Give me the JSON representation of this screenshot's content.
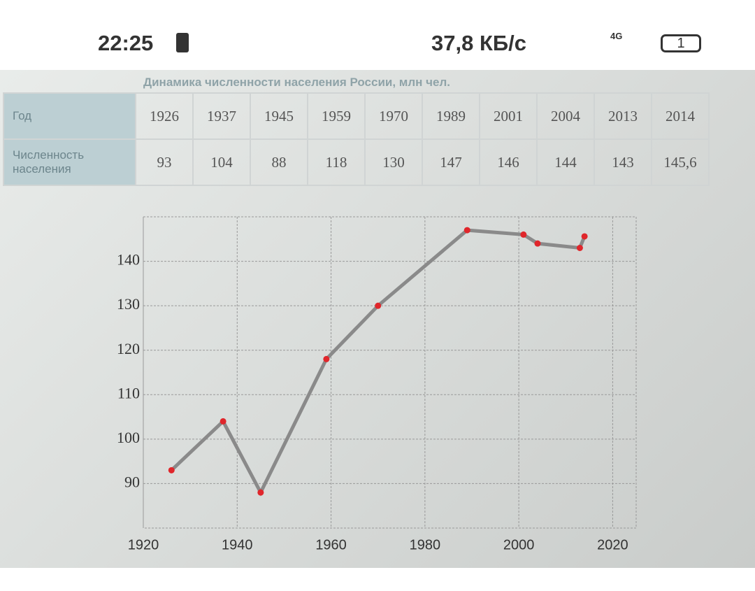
{
  "status_bar": {
    "time": "22:25",
    "speed": "37,8 КБ/с",
    "network": "4G",
    "battery": "1"
  },
  "table": {
    "title": "Динамика численности населения России, млн чел.",
    "row_headers": [
      "Год",
      "Численность населения"
    ],
    "years": [
      1926,
      1937,
      1945,
      1959,
      1970,
      1989,
      2001,
      2004,
      2013,
      2014
    ],
    "population": [
      93,
      104,
      88,
      118,
      130,
      147,
      146,
      144,
      143,
      {
        "value": 145.6,
        "label": "145,6"
      }
    ]
  },
  "chart": {
    "type": "line",
    "color": "#8a8a8a",
    "marker_color": "#e0262b",
    "xlim": [
      1920,
      2025
    ],
    "ylim": [
      80,
      150
    ],
    "xticks": [
      1920,
      1940,
      1960,
      1980,
      2000,
      2020
    ],
    "yticks": [
      90,
      100,
      110,
      120,
      130,
      140
    ],
    "grid": true
  }
}
